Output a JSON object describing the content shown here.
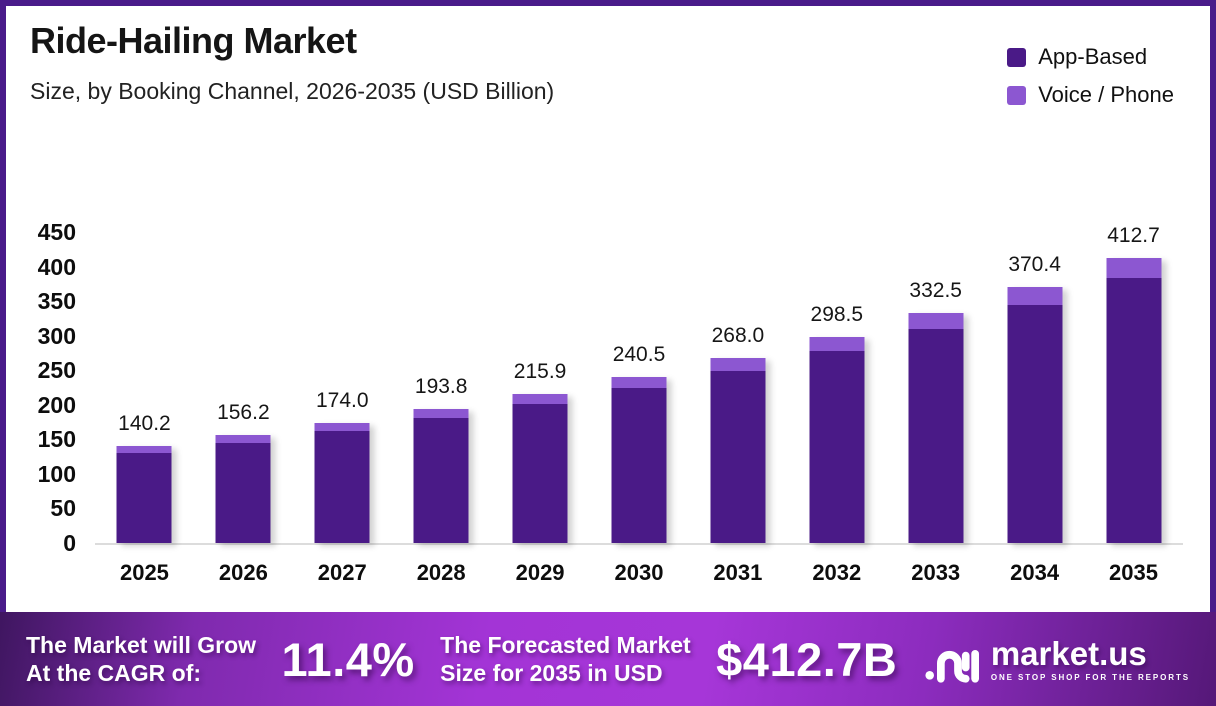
{
  "meta": {
    "title": "Ride-Hailing Market",
    "subtitle": "Size, by Booking Channel, 2026-2035 (USD Billion)"
  },
  "legend": [
    {
      "label": "App-Based",
      "color": "#4A1A87"
    },
    {
      "label": "Voice / Phone",
      "color": "#8C57D1"
    }
  ],
  "chart_data": {
    "type": "bar",
    "stacked": true,
    "title": "Ride-Hailing Market Size, by Booking Channel, 2026-2035 (USD Billion)",
    "categories": [
      "2025",
      "2026",
      "2027",
      "2028",
      "2029",
      "2030",
      "2031",
      "2032",
      "2033",
      "2034",
      "2035"
    ],
    "totals": [
      140.2,
      156.2,
      174.0,
      193.8,
      215.9,
      240.5,
      268.0,
      298.5,
      332.5,
      370.4,
      412.7
    ],
    "total_labels": [
      "140.2",
      "156.2",
      "174.0",
      "193.8",
      "215.9",
      "240.5",
      "268.0",
      "298.5",
      "332.5",
      "370.4",
      "412.7"
    ],
    "series": [
      {
        "name": "App-Based",
        "color": "#4A1A87",
        "values": [
          130.4,
          145.3,
          161.8,
          180.2,
          200.8,
          223.7,
          249.2,
          277.6,
          309.2,
          344.5,
          383.8
        ]
      },
      {
        "name": "Voice / Phone",
        "color": "#8C57D1",
        "values": [
          9.8,
          10.9,
          12.2,
          13.6,
          15.1,
          16.8,
          18.8,
          20.9,
          23.3,
          25.9,
          28.9
        ]
      }
    ],
    "xlabel": "",
    "ylabel": "",
    "ylim": [
      0,
      450
    ],
    "yticks": [
      0,
      50,
      100,
      150,
      200,
      250,
      300,
      350,
      400,
      450
    ],
    "grid": false,
    "legend_position": "top-right"
  },
  "banner": {
    "cagr_label_line1": "The Market will Grow",
    "cagr_label_line2": "At the CAGR of:",
    "cagr_value": "11.4%",
    "forecast_label_line1": "The Forecasted Market",
    "forecast_label_line2": "Size for 2035 in USD",
    "forecast_value": "$412.7B",
    "brand_name": "market.us",
    "brand_tagline": "ONE STOP SHOP FOR THE REPORTS"
  },
  "colors": {
    "frame_border": "#4A1B8A",
    "app_based": "#4A1A87",
    "voice_phone": "#8C57D1",
    "axis_line": "#DCDCDC",
    "banner_center": "#A334D6",
    "banner_edge_left": "#3F1660",
    "banner_edge_right": "#551878"
  }
}
